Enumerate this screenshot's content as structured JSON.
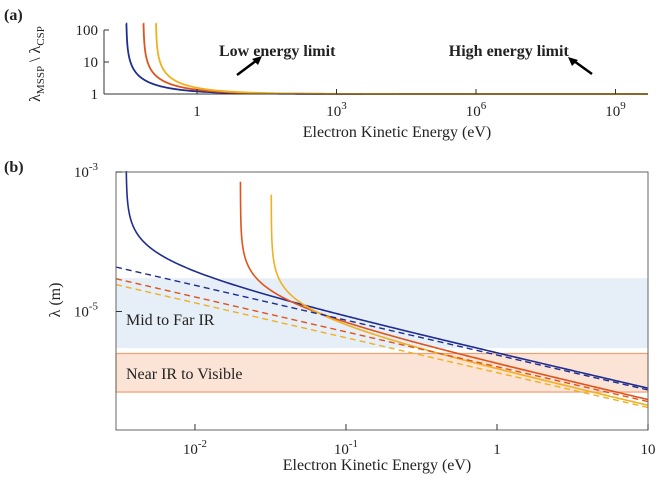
{
  "chart_data": [
    {
      "panel": "(a)",
      "type": "line",
      "xscale": "log",
      "yscale": "log",
      "xlabel": "Electron Kinetic Energy (eV)",
      "ylabel_main": "λ",
      "ylabel_sub1": "MSSP",
      "ylabel_sep": " \\ λ",
      "ylabel_sub2": "CSP",
      "xlim": [
        0.01,
        5000000000
      ],
      "ylim": [
        1,
        100
      ],
      "xticks": [
        {
          "v": 1,
          "label": "1"
        },
        {
          "v": 1000,
          "label": "10"
        },
        {
          "v": 1000000,
          "label": "10"
        },
        {
          "v": 1000000000,
          "label": "10"
        }
      ],
      "xtick_exps": [
        "",
        "3",
        "6",
        "9"
      ],
      "yticks": [
        {
          "v": 1,
          "label": "1"
        },
        {
          "v": 10,
          "label": "10"
        },
        {
          "v": 100,
          "label": "100"
        }
      ],
      "annotations": [
        {
          "text": "Low energy limit",
          "x": 8,
          "y": 9
        },
        {
          "text": "High energy limit",
          "x": 700000,
          "y": 9
        }
      ],
      "series": [
        {
          "color": "#1f2d8f",
          "asymptote": 0.03
        },
        {
          "color": "#e0541c",
          "asymptote": 0.07
        },
        {
          "color": "#f0b020",
          "asymptote": 0.13
        }
      ]
    },
    {
      "panel": "(b)",
      "type": "line",
      "xscale": "log",
      "yscale": "log",
      "xlabel": "Electron Kinetic Energy (eV)",
      "ylabel": "λ (m)",
      "xlim": [
        0.003,
        10
      ],
      "ylim": [
        2e-07,
        0.001
      ],
      "xticks": [
        {
          "v": 0.01,
          "label": "10",
          "exp": "-2"
        },
        {
          "v": 0.1,
          "label": "10",
          "exp": "-1"
        },
        {
          "v": 1,
          "label": "1",
          "exp": ""
        },
        {
          "v": 10,
          "label": "10",
          "exp": ""
        }
      ],
      "yticks": [
        {
          "v": 0.001,
          "label": "10",
          "exp": "-3"
        },
        {
          "v": 1e-05,
          "label": "10",
          "exp": "-5"
        }
      ],
      "bands": [
        {
          "label": "Mid to Far IR",
          "range": [
            3e-06,
            3e-05
          ],
          "fill": "#e6eef7",
          "stroke": "none"
        },
        {
          "label": "Near IR to Visible",
          "range": [
            7e-07,
            2.5e-06
          ],
          "fill": "#fbe3d6",
          "stroke": "#f0a070"
        }
      ],
      "series": [
        {
          "style": "solid",
          "color": "#1f2d8f",
          "asymptote": 0.0035,
          "base": 2.5e-06
        },
        {
          "style": "solid",
          "color": "#e0541c",
          "asymptote": 0.02,
          "base": 1.7e-06
        },
        {
          "style": "solid",
          "color": "#f0b020",
          "asymptote": 0.032,
          "base": 1.4e-06
        },
        {
          "style": "dashed",
          "color": "#1f2d8f",
          "base": 2.5e-06
        },
        {
          "style": "dashed",
          "color": "#e0541c",
          "base": 1.7e-06
        },
        {
          "style": "dashed",
          "color": "#f0b020",
          "base": 1.4e-06
        }
      ]
    }
  ]
}
